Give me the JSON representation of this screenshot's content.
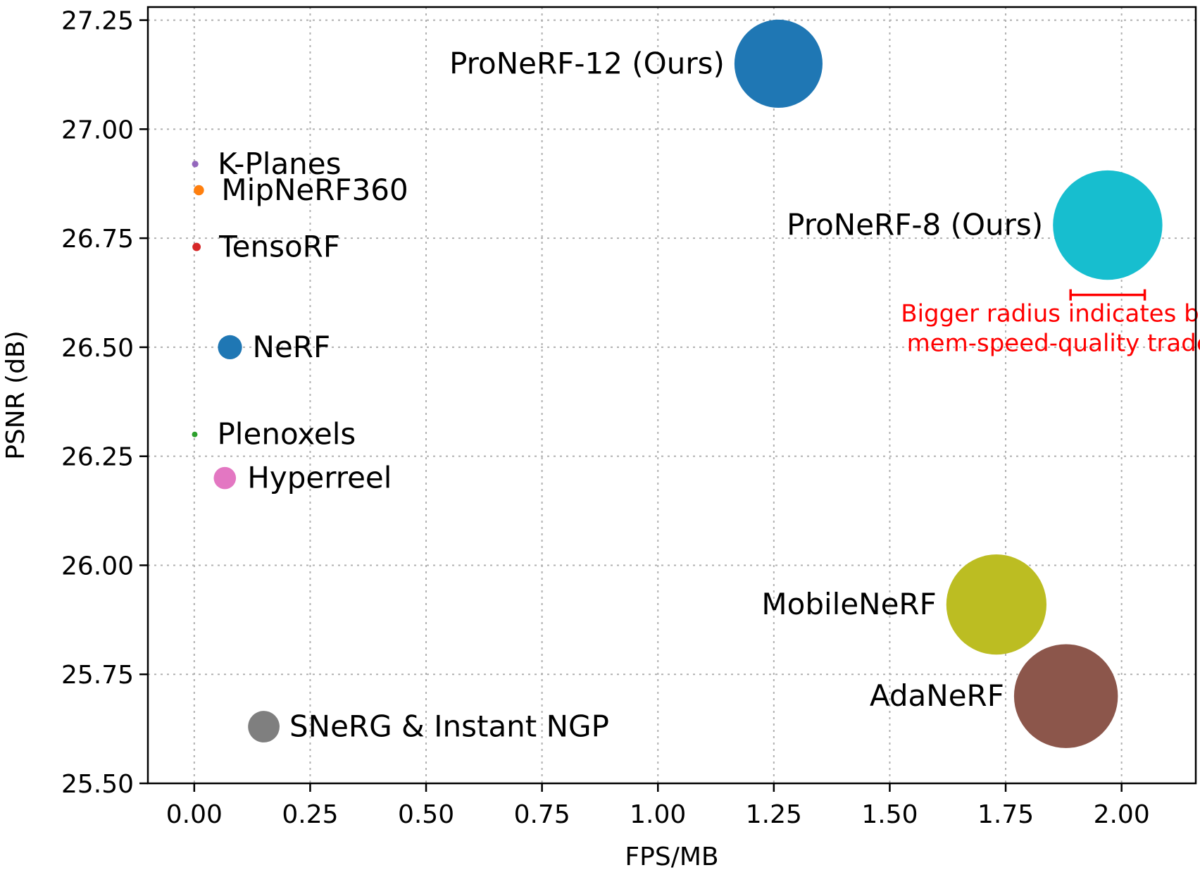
{
  "chart_data": {
    "type": "scatter",
    "title": "",
    "xlabel": "FPS/MB",
    "ylabel": "PSNR (dB)",
    "xlim": [
      -0.1,
      2.16
    ],
    "ylim": [
      25.5,
      27.28
    ],
    "xticks": [
      0.0,
      0.25,
      0.5,
      0.75,
      1.0,
      1.25,
      1.5,
      1.75,
      2.0
    ],
    "yticks": [
      25.5,
      25.75,
      26.0,
      26.25,
      26.5,
      26.75,
      27.0,
      27.25
    ],
    "xtick_labels": [
      "0.00",
      "0.25",
      "0.50",
      "0.75",
      "1.00",
      "1.25",
      "1.50",
      "1.75",
      "2.00"
    ],
    "ytick_labels": [
      "25.50",
      "25.75",
      "26.00",
      "26.25",
      "26.50",
      "26.75",
      "27.00",
      "27.25"
    ],
    "grid": true,
    "size_unit": "bubble radius in FPS/MB units",
    "points": [
      {
        "label": "ProNeRF-12 (Ours)",
        "x": 1.26,
        "y": 27.15,
        "r": 0.095,
        "color": "#1f77b4",
        "label_pos": "left"
      },
      {
        "label": "ProNeRF-8 (Ours)",
        "x": 1.97,
        "y": 26.78,
        "r": 0.118,
        "color": "#17becf",
        "label_pos": "left"
      },
      {
        "label": "K-Planes",
        "x": 0.002,
        "y": 26.92,
        "r": 0.007,
        "color": "#9467bd",
        "label_pos": "right"
      },
      {
        "label": "MipNeRF360",
        "x": 0.01,
        "y": 26.86,
        "r": 0.011,
        "color": "#ff7f0e",
        "label_pos": "right"
      },
      {
        "label": "TensoRF",
        "x": 0.005,
        "y": 26.73,
        "r": 0.009,
        "color": "#d62728",
        "label_pos": "right"
      },
      {
        "label": "NeRF",
        "x": 0.077,
        "y": 26.5,
        "r": 0.026,
        "color": "#1f77b4",
        "label_pos": "right"
      },
      {
        "label": "Plenoxels",
        "x": 0.001,
        "y": 26.3,
        "r": 0.006,
        "color": "#2ca02c",
        "label_pos": "right"
      },
      {
        "label": "Hyperreel",
        "x": 0.066,
        "y": 26.2,
        "r": 0.024,
        "color": "#e377c2",
        "label_pos": "right"
      },
      {
        "label": "MobileNeRF",
        "x": 1.73,
        "y": 25.91,
        "r": 0.108,
        "color": "#bcbd22",
        "label_pos": "left"
      },
      {
        "label": "AdaNeRF",
        "x": 1.88,
        "y": 25.7,
        "r": 0.112,
        "color": "#8c564b",
        "label_pos": "left"
      },
      {
        "label": "SNeRG & Instant NGP",
        "x": 0.15,
        "y": 25.63,
        "r": 0.034,
        "color": "#7f7f7f",
        "label_pos": "right"
      }
    ],
    "annotation": {
      "lines": [
        "Bigger radius indicates better",
        "mem-speed-quality trade-off"
      ],
      "color": "#ff0000",
      "scale_bar": {
        "x_start": 1.89,
        "x_end": 2.05,
        "y": 26.62
      },
      "text_x": 1.89,
      "text_y": 26.52
    }
  }
}
